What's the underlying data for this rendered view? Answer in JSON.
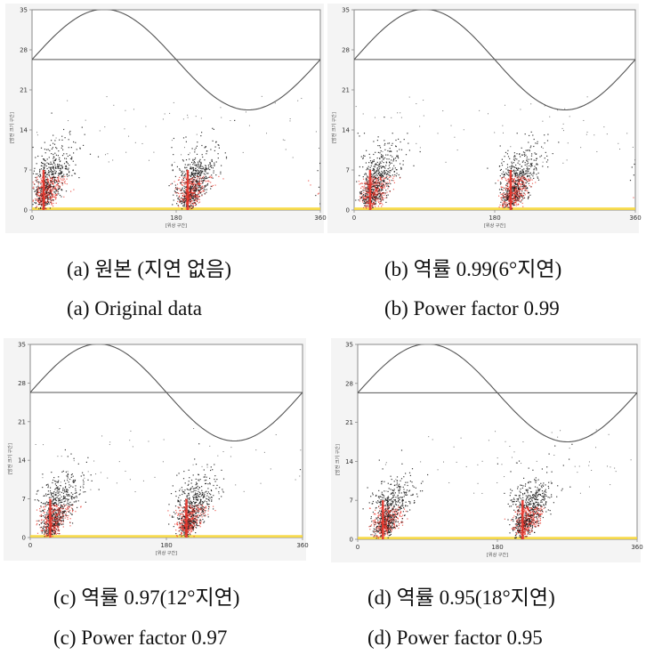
{
  "chart_data": [
    {
      "type": "scatter",
      "xlabel": "[위상 구간]",
      "ylabel": "[방전 크기 구간]",
      "xticks": [
        "0",
        "180",
        "360"
      ],
      "yticks": [
        "0",
        "7",
        "14",
        "21",
        "28",
        "35"
      ],
      "xlim": [
        0,
        360
      ],
      "ylim": [
        0,
        35
      ],
      "phase_delay_deg": 0,
      "reference_sine": {
        "center": 26.3,
        "amplitude": 8.8
      },
      "caption_ko": "(a) 원본 (지연 없음)",
      "caption_en": "(a) Original data"
    },
    {
      "type": "scatter",
      "xlabel": "[위상 구간]",
      "ylabel": "[방전 크기 구간]",
      "xticks": [
        "0",
        "180",
        "360"
      ],
      "yticks": [
        "0",
        "7",
        "14",
        "21",
        "28",
        "35"
      ],
      "xlim": [
        0,
        360
      ],
      "ylim": [
        0,
        35
      ],
      "phase_delay_deg": 6,
      "reference_sine": {
        "center": 26.3,
        "amplitude": 8.8
      },
      "caption_ko": "(b) 역률 0.99(6°지연)",
      "caption_en": "(b) Power factor 0.99"
    },
    {
      "type": "scatter",
      "xlabel": "[위상 구간]",
      "ylabel": "[방전 크기 구간]",
      "xticks": [
        "0",
        "180",
        "360"
      ],
      "yticks": [
        "0",
        "7",
        "14",
        "21",
        "28",
        "35"
      ],
      "xlim": [
        0,
        360
      ],
      "ylim": [
        0,
        35
      ],
      "phase_delay_deg": 12,
      "reference_sine": {
        "center": 26.3,
        "amplitude": 8.8
      },
      "caption_ko": "(c) 역률 0.97(12°지연)",
      "caption_en": "(c) Power factor 0.97"
    },
    {
      "type": "scatter",
      "xlabel": "[위상 구간]",
      "ylabel": "[방전 크기 구간]",
      "xticks": [
        "0",
        "180",
        "360"
      ],
      "yticks": [
        "0",
        "7",
        "14",
        "21",
        "28",
        "35"
      ],
      "xlim": [
        0,
        360
      ],
      "ylim": [
        0,
        35
      ],
      "phase_delay_deg": 18,
      "reference_sine": {
        "center": 26.3,
        "amplitude": 8.8
      },
      "caption_ko": "(d) 역률 0.95(18°지연)",
      "caption_en": "(d) Power factor 0.95"
    }
  ],
  "colors": {
    "point": "#1a1a1a",
    "dense": "#e8342a",
    "core": "#f7d633",
    "frame": "#8a8a8a",
    "sine": "#555555"
  }
}
